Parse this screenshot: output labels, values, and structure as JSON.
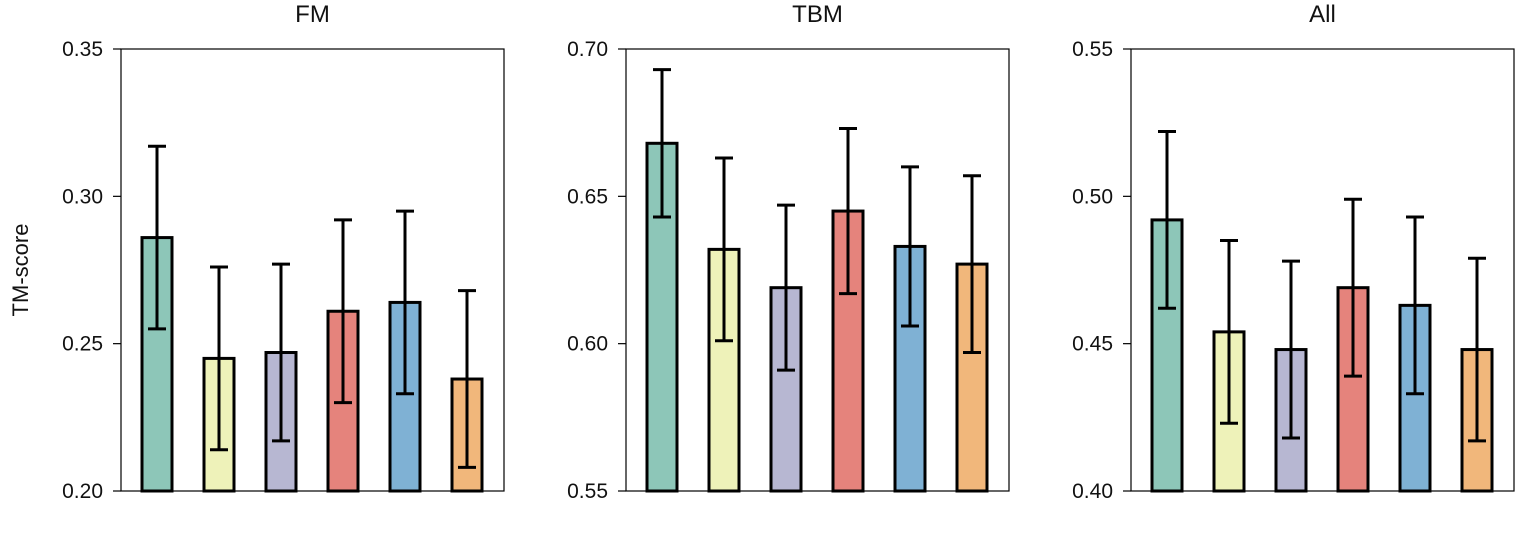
{
  "ylabel": "TM-score",
  "colors": [
    "#8dc6b8",
    "#eef2b9",
    "#b7b7d2",
    "#e5837c",
    "#7fb1d4",
    "#f1b77b"
  ],
  "chart_data": [
    {
      "type": "bar",
      "title": "FM",
      "ylim": [
        0.2,
        0.35
      ],
      "yticks": [
        "0.20",
        "0.25",
        "0.30",
        "0.35"
      ],
      "values": [
        0.286,
        0.245,
        0.247,
        0.261,
        0.264,
        0.238
      ],
      "errors": [
        0.031,
        0.031,
        0.03,
        0.031,
        0.031,
        0.03
      ]
    },
    {
      "type": "bar",
      "title": "TBM",
      "ylim": [
        0.55,
        0.7
      ],
      "yticks": [
        "0.55",
        "0.60",
        "0.65",
        "0.70"
      ],
      "values": [
        0.668,
        0.632,
        0.619,
        0.645,
        0.633,
        0.627
      ],
      "errors": [
        0.025,
        0.031,
        0.028,
        0.028,
        0.027,
        0.03
      ]
    },
    {
      "type": "bar",
      "title": "All",
      "ylim": [
        0.4,
        0.55
      ],
      "yticks": [
        "0.40",
        "0.45",
        "0.50",
        "0.55"
      ],
      "values": [
        0.492,
        0.454,
        0.448,
        0.469,
        0.463,
        0.448
      ],
      "errors": [
        0.03,
        0.031,
        0.03,
        0.03,
        0.03,
        0.031
      ]
    }
  ]
}
